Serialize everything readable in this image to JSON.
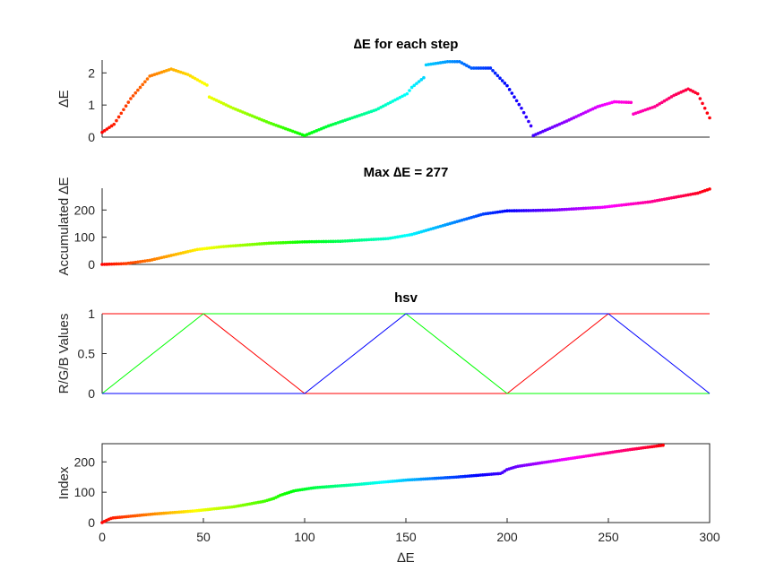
{
  "chart_data": [
    {
      "type": "scatter",
      "title": "∆E for each step",
      "ylabel": "∆E",
      "xlabel": "",
      "xlim": [
        0,
        255
      ],
      "ylim": [
        0,
        2.4
      ],
      "yticks": [
        0,
        1,
        2
      ],
      "grid": false,
      "color_by_index": "hsv",
      "control_points": [
        [
          0,
          0.15
        ],
        [
          5,
          0.4
        ],
        [
          12,
          1.2
        ],
        [
          20,
          1.9
        ],
        [
          29,
          2.12
        ],
        [
          36,
          1.95
        ],
        [
          44,
          1.62
        ],
        [
          45,
          1.25
        ],
        [
          55,
          0.9
        ],
        [
          70,
          0.45
        ],
        [
          85,
          0.05
        ],
        [
          95,
          0.35
        ],
        [
          115,
          0.85
        ],
        [
          128,
          1.35
        ],
        [
          130,
          1.55
        ],
        [
          135,
          1.85
        ],
        [
          136,
          2.25
        ],
        [
          145,
          2.35
        ],
        [
          150,
          2.35
        ],
        [
          155,
          2.15
        ],
        [
          163,
          2.15
        ],
        [
          170,
          1.6
        ],
        [
          176,
          0.9
        ],
        [
          180,
          0.35
        ],
        [
          181,
          0.05
        ],
        [
          195,
          0.5
        ],
        [
          208,
          0.95
        ],
        [
          215,
          1.1
        ],
        [
          222,
          1.08
        ],
        [
          223,
          0.72
        ],
        [
          232,
          0.95
        ],
        [
          240,
          1.3
        ],
        [
          246,
          1.5
        ],
        [
          250,
          1.35
        ],
        [
          255,
          0.6
        ]
      ]
    },
    {
      "type": "scatter",
      "title": "Max ∆E = 277",
      "ylabel": "Accumulated ∆E",
      "xlabel": "",
      "xlim": [
        0,
        255
      ],
      "ylim": [
        0,
        280
      ],
      "yticks": [
        0,
        100,
        200
      ],
      "grid": false,
      "color_by_index": "hsv",
      "control_points": [
        [
          0,
          0
        ],
        [
          10,
          3
        ],
        [
          20,
          15
        ],
        [
          30,
          35
        ],
        [
          40,
          55
        ],
        [
          50,
          65
        ],
        [
          70,
          78
        ],
        [
          85,
          83
        ],
        [
          100,
          85
        ],
        [
          120,
          95
        ],
        [
          130,
          110
        ],
        [
          140,
          135
        ],
        [
          150,
          160
        ],
        [
          160,
          185
        ],
        [
          170,
          197
        ],
        [
          180,
          198
        ],
        [
          190,
          200
        ],
        [
          210,
          210
        ],
        [
          230,
          230
        ],
        [
          250,
          262
        ],
        [
          255,
          277
        ]
      ]
    },
    {
      "type": "line",
      "title": "hsv",
      "ylabel": "R/G/B Values",
      "xlabel": "",
      "xlim": [
        0,
        300
      ],
      "ylim": [
        0,
        1
      ],
      "yticks": [
        0,
        0.5,
        1
      ],
      "grid": false,
      "series": [
        {
          "color": "#ff0000",
          "x": [
            0,
            50,
            100,
            200,
            250,
            300
          ],
          "y": [
            1,
            1,
            0,
            0,
            1,
            1
          ]
        },
        {
          "color": "#00ff00",
          "x": [
            0,
            50,
            150,
            200,
            300
          ],
          "y": [
            0,
            1,
            1,
            0,
            0
          ]
        },
        {
          "color": "#0000ff",
          "x": [
            0,
            100,
            150,
            250,
            300
          ],
          "y": [
            0,
            0,
            1,
            1,
            0
          ]
        }
      ]
    },
    {
      "type": "scatter",
      "title": "",
      "ylabel": "Index",
      "xlabel": "∆E",
      "xlim": [
        0,
        300
      ],
      "ylim": [
        0,
        260
      ],
      "yticks": [
        0,
        100,
        200
      ],
      "xticks": [
        0,
        50,
        100,
        150,
        200,
        250,
        300
      ],
      "grid": false,
      "color_by_index": "hsv",
      "control_points": [
        [
          0,
          0
        ],
        [
          3,
          10
        ],
        [
          5,
          15
        ],
        [
          25,
          28
        ],
        [
          45,
          38
        ],
        [
          65,
          52
        ],
        [
          80,
          70
        ],
        [
          85,
          80
        ],
        [
          88,
          90
        ],
        [
          95,
          105
        ],
        [
          105,
          115
        ],
        [
          125,
          125
        ],
        [
          150,
          140
        ],
        [
          175,
          150
        ],
        [
          197,
          162
        ],
        [
          200,
          175
        ],
        [
          205,
          185
        ],
        [
          220,
          200
        ],
        [
          240,
          220
        ],
        [
          260,
          240
        ],
        [
          277,
          255
        ]
      ]
    }
  ]
}
